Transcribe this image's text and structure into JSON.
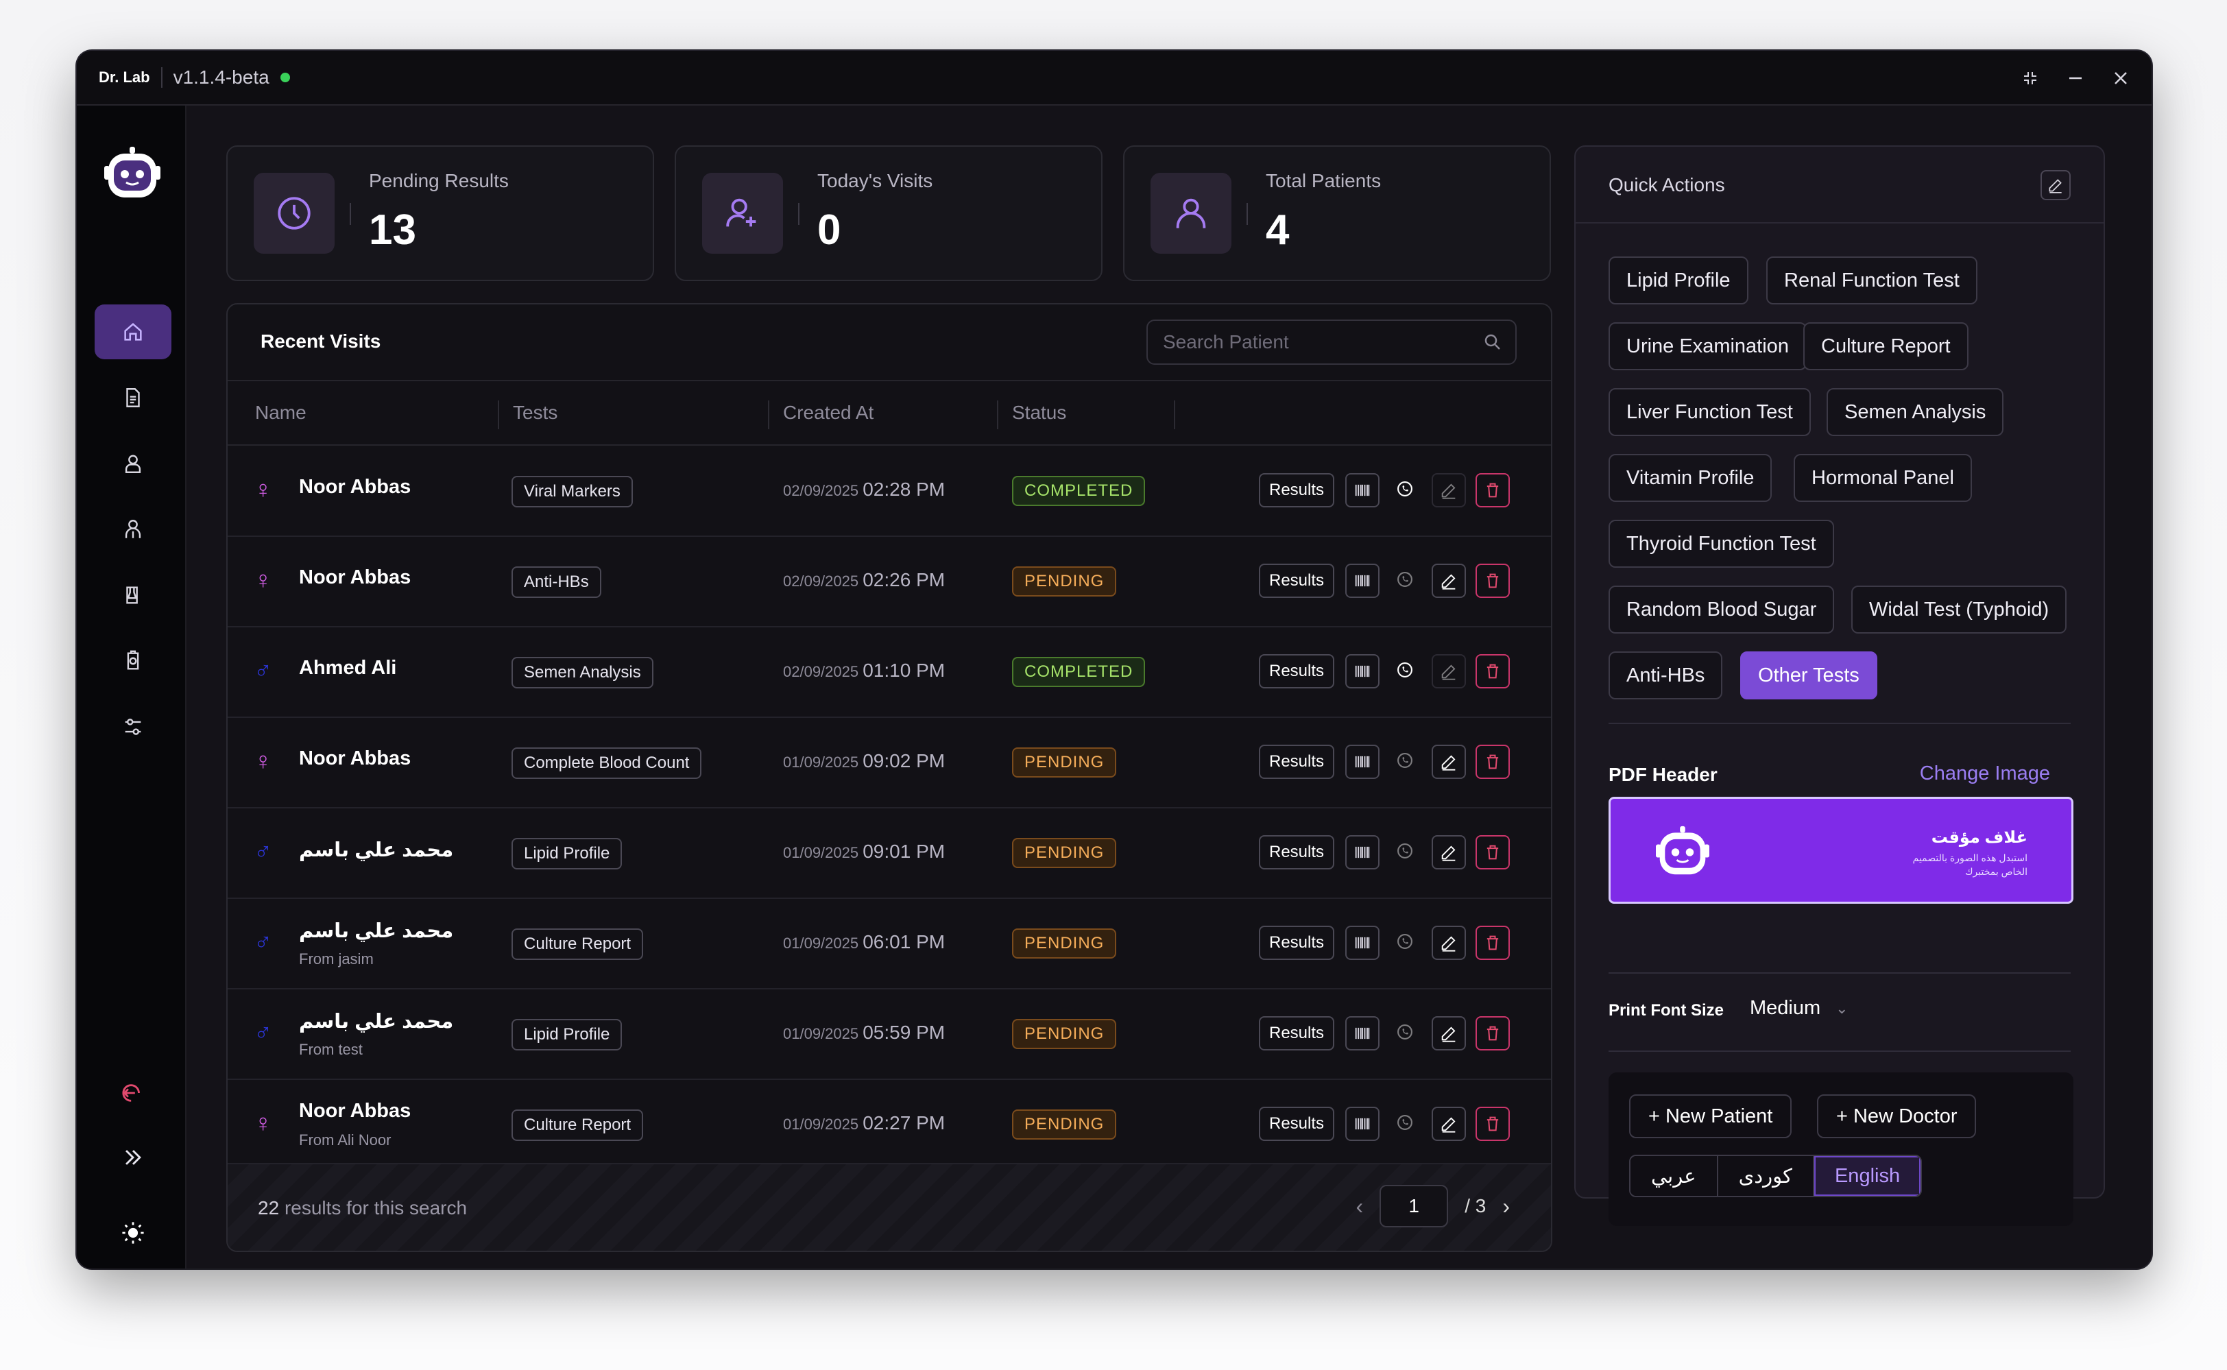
{
  "titlebar": {
    "app_name": "Dr. Lab",
    "version": "v1.1.4-beta"
  },
  "stats": [
    {
      "label": "Pending Results",
      "value": "13",
      "icon": "clock-icon"
    },
    {
      "label": "Today's Visits",
      "value": "0",
      "icon": "user-add-icon"
    },
    {
      "label": "Total Patients",
      "value": "4",
      "icon": "user-icon"
    }
  ],
  "visits": {
    "title": "Recent Visits",
    "search_placeholder": "Search Patient",
    "columns": [
      "Name",
      "Tests",
      "Created At",
      "Status"
    ],
    "results_label": "Results",
    "rows": [
      {
        "gender": "♀",
        "gender_color": "#d45ee8",
        "name": "Noor Abbas",
        "sub": "",
        "test": "Viral Markers",
        "date": "02/09/2025",
        "time": "02:28 PM",
        "status": "COMPLETED"
      },
      {
        "gender": "♀",
        "gender_color": "#d45ee8",
        "name": "Noor Abbas",
        "sub": "",
        "test": "Anti-HBs",
        "date": "02/09/2025",
        "time": "02:26 PM",
        "status": "PENDING"
      },
      {
        "gender": "♂",
        "gender_color": "#2b35d8",
        "name": "Ahmed Ali",
        "sub": "",
        "test": "Semen Analysis",
        "date": "02/09/2025",
        "time": "01:10 PM",
        "status": "COMPLETED"
      },
      {
        "gender": "♀",
        "gender_color": "#d45ee8",
        "name": "Noor Abbas",
        "sub": "",
        "test": "Complete Blood Count",
        "date": "01/09/2025",
        "time": "09:02 PM",
        "status": "PENDING"
      },
      {
        "gender": "♂",
        "gender_color": "#2b35d8",
        "name": "محمد علي باسم",
        "sub": "",
        "test": "Lipid Profile",
        "date": "01/09/2025",
        "time": "09:01 PM",
        "status": "PENDING"
      },
      {
        "gender": "♂",
        "gender_color": "#2b35d8",
        "name": "محمد علي باسم",
        "sub": "From jasim",
        "test": "Culture Report",
        "date": "01/09/2025",
        "time": "06:01 PM",
        "status": "PENDING"
      },
      {
        "gender": "♂",
        "gender_color": "#2b35d8",
        "name": "محمد علي باسم",
        "sub": "From test",
        "test": "Lipid Profile",
        "date": "01/09/2025",
        "time": "05:59 PM",
        "status": "PENDING"
      },
      {
        "gender": "♀",
        "gender_color": "#d45ee8",
        "name": "Noor Abbas",
        "sub": "From Ali Noor",
        "test": "Culture Report",
        "date": "01/09/2025",
        "time": "02:27 PM",
        "status": "PENDING"
      }
    ],
    "footer": {
      "count": "22",
      "count_text": "results for this search",
      "page": "1",
      "total_pages": "/ 3"
    }
  },
  "quick_actions": {
    "title": "Quick Actions",
    "buttons": [
      "Lipid Profile",
      "Renal Function Test",
      "Urine Examination",
      "Culture Report",
      "Liver Function Test",
      "Semen Analysis",
      "Vitamin Profile",
      "Hormonal Panel",
      "Thyroid Function Test",
      "Random Blood Sugar",
      "Widal Test (Typhoid)",
      "Anti-HBs",
      "Other Tests"
    ],
    "pdf_header_label": "PDF Header",
    "change_image": "Change Image",
    "pdf_preview": {
      "title": "غلاف مؤقت",
      "subtitle": "استبدل هذه الصورة بالتصميم الخاص بمختبرك"
    },
    "print_font_label": "Print Font Size",
    "print_font_value": "Medium",
    "new_patient": "+ New Patient",
    "new_doctor": "+ New Doctor",
    "languages": [
      "عربي",
      "كوردی",
      "English"
    ],
    "selected_language": "English"
  },
  "colors": {
    "accent": "#7b4bd6",
    "background": "#141218",
    "completed": "#a6e36a",
    "pending": "#f5ad5a"
  }
}
